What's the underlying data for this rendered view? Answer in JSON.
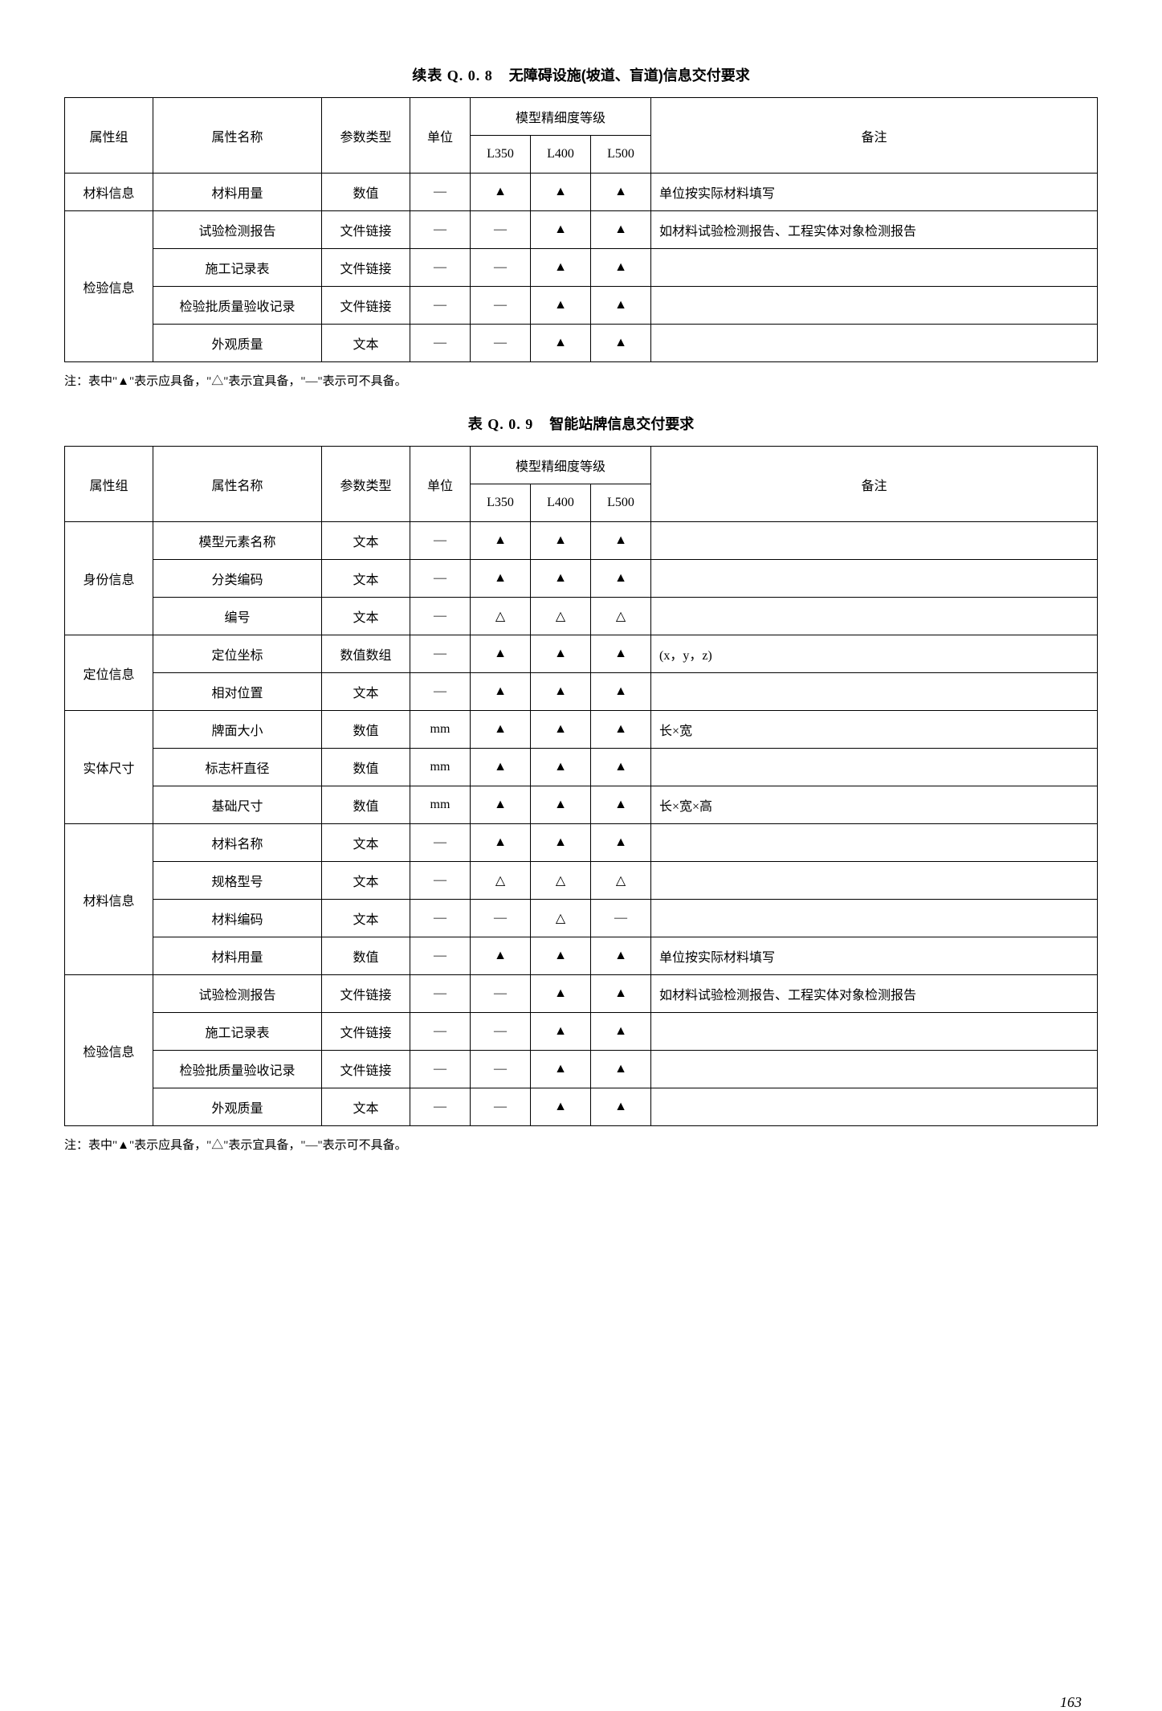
{
  "page_number": "163",
  "footnote": "注：表中\"▲\"表示应具备，\"△\"表示宜具备，\"—\"表示可不具备。",
  "symbols": {
    "filled": "▲",
    "hollow": "△",
    "dash": "—"
  },
  "headers": {
    "group": "属性组",
    "name": "属性名称",
    "type": "参数类型",
    "unit": "单位",
    "level_header": "模型精细度等级",
    "l350": "L350",
    "l400": "L400",
    "l500": "L500",
    "note": "备注"
  },
  "table1": {
    "title_num": "续表 Q. 0. 8",
    "title_text": "无障碍设施(坡道、盲道)信息交付要求",
    "groups": [
      {
        "name": "材料信息",
        "rows": [
          {
            "name": "材料用量",
            "type": "数值",
            "unit": "—",
            "l350": "▲",
            "l400": "▲",
            "l500": "▲",
            "note": "单位按实际材料填写"
          }
        ]
      },
      {
        "name": "检验信息",
        "rows": [
          {
            "name": "试验检测报告",
            "type": "文件链接",
            "unit": "—",
            "l350": "—",
            "l400": "▲",
            "l500": "▲",
            "note": "如材料试验检测报告、工程实体对象检测报告"
          },
          {
            "name": "施工记录表",
            "type": "文件链接",
            "unit": "—",
            "l350": "—",
            "l400": "▲",
            "l500": "▲",
            "note": ""
          },
          {
            "name": "检验批质量验收记录",
            "type": "文件链接",
            "unit": "—",
            "l350": "—",
            "l400": "▲",
            "l500": "▲",
            "note": ""
          },
          {
            "name": "外观质量",
            "type": "文本",
            "unit": "—",
            "l350": "—",
            "l400": "▲",
            "l500": "▲",
            "note": ""
          }
        ]
      }
    ]
  },
  "table2": {
    "title_num": "表 Q. 0. 9",
    "title_text": "智能站牌信息交付要求",
    "groups": [
      {
        "name": "身份信息",
        "rows": [
          {
            "name": "模型元素名称",
            "type": "文本",
            "unit": "—",
            "l350": "▲",
            "l400": "▲",
            "l500": "▲",
            "note": ""
          },
          {
            "name": "分类编码",
            "type": "文本",
            "unit": "—",
            "l350": "▲",
            "l400": "▲",
            "l500": "▲",
            "note": ""
          },
          {
            "name": "编号",
            "type": "文本",
            "unit": "—",
            "l350": "△",
            "l400": "△",
            "l500": "△",
            "note": ""
          }
        ]
      },
      {
        "name": "定位信息",
        "rows": [
          {
            "name": "定位坐标",
            "type": "数值数组",
            "unit": "—",
            "l350": "▲",
            "l400": "▲",
            "l500": "▲",
            "note": "(x，y，z)"
          },
          {
            "name": "相对位置",
            "type": "文本",
            "unit": "—",
            "l350": "▲",
            "l400": "▲",
            "l500": "▲",
            "note": ""
          }
        ]
      },
      {
        "name": "实体尺寸",
        "rows": [
          {
            "name": "牌面大小",
            "type": "数值",
            "unit": "mm",
            "l350": "▲",
            "l400": "▲",
            "l500": "▲",
            "note": "长×宽"
          },
          {
            "name": "标志杆直径",
            "type": "数值",
            "unit": "mm",
            "l350": "▲",
            "l400": "▲",
            "l500": "▲",
            "note": ""
          },
          {
            "name": "基础尺寸",
            "type": "数值",
            "unit": "mm",
            "l350": "▲",
            "l400": "▲",
            "l500": "▲",
            "note": "长×宽×高"
          }
        ]
      },
      {
        "name": "材料信息",
        "rows": [
          {
            "name": "材料名称",
            "type": "文本",
            "unit": "—",
            "l350": "▲",
            "l400": "▲",
            "l500": "▲",
            "note": ""
          },
          {
            "name": "规格型号",
            "type": "文本",
            "unit": "—",
            "l350": "△",
            "l400": "△",
            "l500": "△",
            "note": ""
          },
          {
            "name": "材料编码",
            "type": "文本",
            "unit": "—",
            "l350": "—",
            "l400": "△",
            "l500": "—",
            "note": ""
          },
          {
            "name": "材料用量",
            "type": "数值",
            "unit": "—",
            "l350": "▲",
            "l400": "▲",
            "l500": "▲",
            "note": "单位按实际材料填写"
          }
        ]
      },
      {
        "name": "检验信息",
        "rows": [
          {
            "name": "试验检测报告",
            "type": "文件链接",
            "unit": "—",
            "l350": "—",
            "l400": "▲",
            "l500": "▲",
            "note": "如材料试验检测报告、工程实体对象检测报告"
          },
          {
            "name": "施工记录表",
            "type": "文件链接",
            "unit": "—",
            "l350": "—",
            "l400": "▲",
            "l500": "▲",
            "note": ""
          },
          {
            "name": "检验批质量验收记录",
            "type": "文件链接",
            "unit": "—",
            "l350": "—",
            "l400": "▲",
            "l500": "▲",
            "note": ""
          },
          {
            "name": "外观质量",
            "type": "文本",
            "unit": "—",
            "l350": "—",
            "l400": "▲",
            "l500": "▲",
            "note": ""
          }
        ]
      }
    ]
  }
}
